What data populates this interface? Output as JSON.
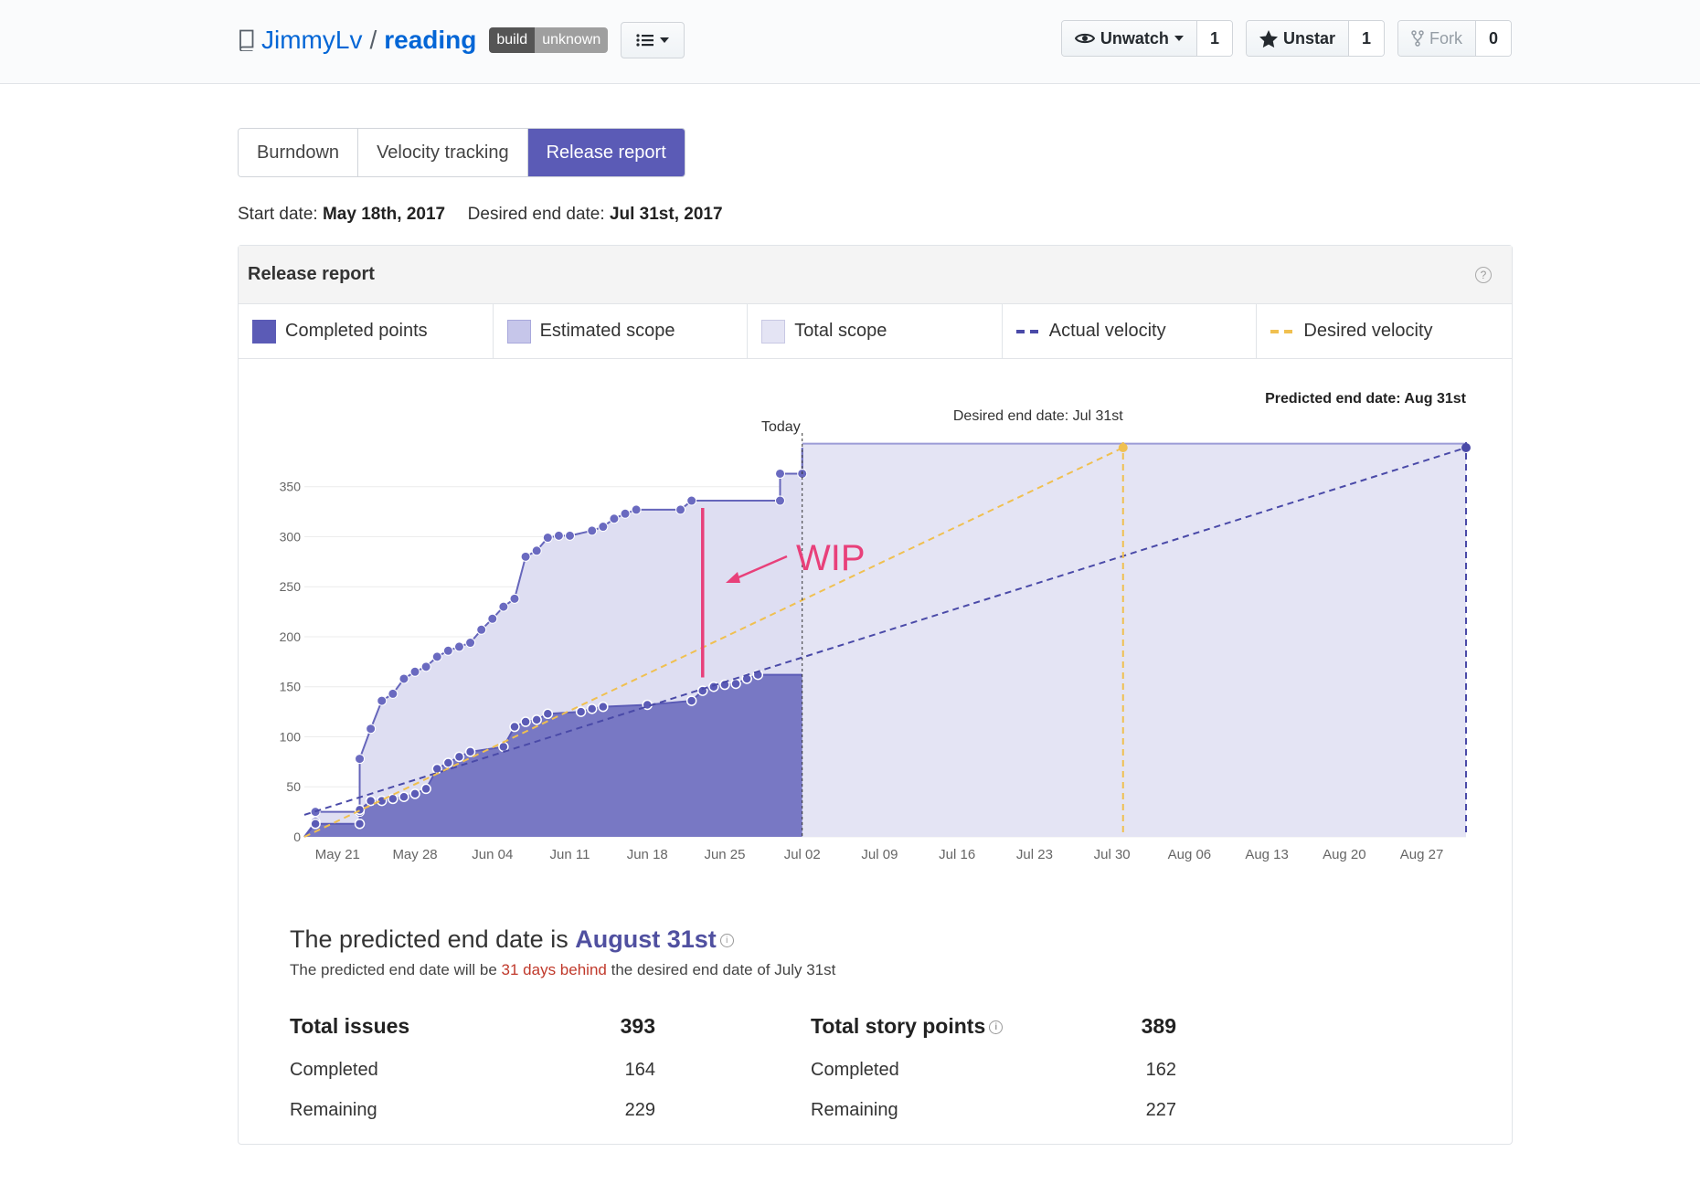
{
  "header": {
    "owner": "JimmyLv",
    "separator": "/",
    "repo": "reading",
    "badge_left": "build",
    "badge_right": "unknown",
    "watch_label": "Unwatch",
    "watch_count": "1",
    "star_label": "Unstar",
    "star_count": "1",
    "fork_label": "Fork",
    "fork_count": "0"
  },
  "tabs": [
    {
      "label": "Burndown"
    },
    {
      "label": "Velocity tracking"
    },
    {
      "label": "Release report"
    }
  ],
  "dates": {
    "start_label": "Start date:",
    "start_value": "May 18th, 2017",
    "end_label": "Desired end date:",
    "end_value": "Jul 31st, 2017"
  },
  "panel": {
    "title": "Release report",
    "help": "?"
  },
  "legend": [
    {
      "label": "Completed points",
      "color": "#5b5bb6"
    },
    {
      "label": "Estimated scope",
      "color": "#c6c6ea"
    },
    {
      "label": "Total scope",
      "color": "#e4e4f4"
    },
    {
      "label": "Actual velocity",
      "color": "#4a4aa8"
    },
    {
      "label": "Desired velocity",
      "color": "#f0c050"
    }
  ],
  "chart_data": {
    "type": "area",
    "x_tick_labels": [
      "May 21",
      "May 28",
      "Jun 04",
      "Jun 11",
      "Jun 18",
      "Jun 25",
      "Jul 02",
      "Jul 09",
      "Jul 16",
      "Jul 23",
      "Jul 30",
      "Aug 06",
      "Aug 13",
      "Aug 20",
      "Aug 27"
    ],
    "y_ticks": [
      0,
      50,
      100,
      150,
      200,
      250,
      300,
      350
    ],
    "xlim": [
      "2017-05-18",
      "2017-08-31"
    ],
    "ylim": [
      0,
      389
    ],
    "grid": true,
    "annotations": {
      "today": "Today",
      "today_date": "2017-07-02",
      "desired_end": "Desired end date: Jul 31st",
      "desired_end_date": "2017-07-31",
      "predicted_end": "Predicted end date: Aug 31st",
      "predicted_end_date": "2017-08-31",
      "wip": "WIP"
    },
    "series": [
      {
        "name": "Estimated scope",
        "points": [
          [
            "2017-05-18",
            0
          ],
          [
            "2017-05-19",
            15
          ],
          [
            "2017-05-19",
            25
          ],
          [
            "2017-05-23",
            25
          ],
          [
            "2017-05-23",
            78
          ],
          [
            "2017-05-24",
            108
          ],
          [
            "2017-05-25",
            136
          ],
          [
            "2017-05-26",
            143
          ],
          [
            "2017-05-27",
            158
          ],
          [
            "2017-05-28",
            165
          ],
          [
            "2017-05-29",
            170
          ],
          [
            "2017-05-30",
            180
          ],
          [
            "2017-05-31",
            186
          ],
          [
            "2017-06-01",
            190
          ],
          [
            "2017-06-02",
            194
          ],
          [
            "2017-06-03",
            207
          ],
          [
            "2017-06-04",
            218
          ],
          [
            "2017-06-05",
            230
          ],
          [
            "2017-06-06",
            238
          ],
          [
            "2017-06-07",
            280
          ],
          [
            "2017-06-08",
            286
          ],
          [
            "2017-06-09",
            299
          ],
          [
            "2017-06-10",
            301
          ],
          [
            "2017-06-11",
            301
          ],
          [
            "2017-06-13",
            306
          ],
          [
            "2017-06-14",
            310
          ],
          [
            "2017-06-15",
            318
          ],
          [
            "2017-06-16",
            323
          ],
          [
            "2017-06-17",
            327
          ],
          [
            "2017-06-21",
            327
          ],
          [
            "2017-06-22",
            336
          ],
          [
            "2017-06-30",
            336
          ],
          [
            "2017-06-30",
            363
          ],
          [
            "2017-07-02",
            363
          ],
          [
            "2017-07-02",
            389
          ]
        ]
      },
      {
        "name": "Completed points",
        "points": [
          [
            "2017-05-18",
            0
          ],
          [
            "2017-05-19",
            13
          ],
          [
            "2017-05-23",
            13
          ],
          [
            "2017-05-23",
            27
          ],
          [
            "2017-05-24",
            36
          ],
          [
            "2017-05-25",
            36
          ],
          [
            "2017-05-26",
            38
          ],
          [
            "2017-05-27",
            40
          ],
          [
            "2017-05-28",
            43
          ],
          [
            "2017-05-29",
            48
          ],
          [
            "2017-05-30",
            68
          ],
          [
            "2017-05-31",
            74
          ],
          [
            "2017-06-01",
            80
          ],
          [
            "2017-06-02",
            85
          ],
          [
            "2017-06-05",
            90
          ],
          [
            "2017-06-06",
            110
          ],
          [
            "2017-06-07",
            115
          ],
          [
            "2017-06-08",
            117
          ],
          [
            "2017-06-09",
            123
          ],
          [
            "2017-06-12",
            125
          ],
          [
            "2017-06-13",
            128
          ],
          [
            "2017-06-14",
            130
          ],
          [
            "2017-06-18",
            132
          ],
          [
            "2017-06-22",
            136
          ],
          [
            "2017-06-23",
            146
          ],
          [
            "2017-06-24",
            150
          ],
          [
            "2017-06-25",
            152
          ],
          [
            "2017-06-26",
            153
          ],
          [
            "2017-06-27",
            158
          ],
          [
            "2017-06-28",
            162
          ],
          [
            "2017-07-02",
            162
          ]
        ]
      },
      {
        "name": "Total scope",
        "points": [
          [
            "2017-07-02",
            393
          ],
          [
            "2017-08-31",
            393
          ]
        ]
      },
      {
        "name": "Actual velocity",
        "points": [
          [
            "2017-05-18",
            22
          ],
          [
            "2017-08-31",
            389
          ]
        ]
      },
      {
        "name": "Desired velocity",
        "points": [
          [
            "2017-05-18",
            0
          ],
          [
            "2017-07-31",
            389
          ]
        ]
      }
    ]
  },
  "summary": {
    "title_prefix": "The predicted end date is",
    "title_date": "August 31st",
    "sub_prefix": "The predicted end date will be",
    "sub_behind": "31 days behind",
    "sub_suffix": "the desired end date of July 31st"
  },
  "stats": {
    "issues": {
      "label": "Total issues",
      "total": "393",
      "completed_label": "Completed",
      "completed": "164",
      "remaining_label": "Remaining",
      "remaining": "229"
    },
    "points": {
      "label": "Total story points",
      "total": "389",
      "completed_label": "Completed",
      "completed": "162",
      "remaining_label": "Remaining",
      "remaining": "227"
    }
  }
}
